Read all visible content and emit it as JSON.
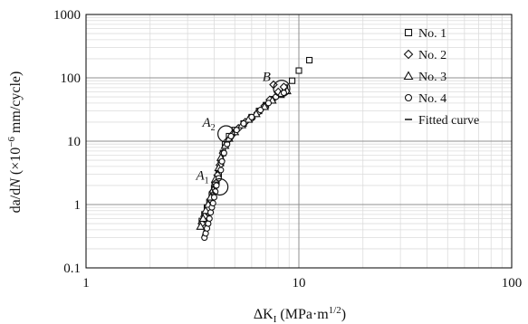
{
  "chart_data": {
    "type": "scatter",
    "x_scale": "log",
    "y_scale": "log",
    "xlim": [
      1,
      100
    ],
    "ylim": [
      0.1,
      1000
    ],
    "x_ticks": [
      "1",
      "10",
      "100"
    ],
    "y_ticks": [
      "0.1",
      "1",
      "10",
      "100",
      "1000"
    ],
    "grid": true,
    "legend_position": "top-right",
    "xlabel": {
      "prefix": "ΔK",
      "sub": "I",
      "mid": " (MPa·m",
      "sup": "1/2",
      "suffix": ")"
    },
    "ylabel": {
      "a": "da",
      "s1": "/d",
      "n": "N",
      "mid": " (×10",
      "sup": "−6",
      "suffix": " mm/cycle)"
    },
    "annotations": [
      {
        "main": "A",
        "sub": "1",
        "x": 4.25,
        "y": 1.9
      },
      {
        "main": "A",
        "sub": "2",
        "x": 4.55,
        "y": 13
      },
      {
        "main": "B",
        "sub": "",
        "x": 8.3,
        "y": 68
      }
    ],
    "series": [
      {
        "name": "No. 1",
        "marker": "square",
        "points": [
          [
            3.5,
            0.55
          ],
          [
            3.6,
            0.7
          ],
          [
            3.7,
            0.9
          ],
          [
            3.8,
            1.1
          ],
          [
            3.9,
            1.4
          ],
          [
            4.0,
            1.8
          ],
          [
            4.1,
            2.3
          ],
          [
            4.2,
            3.0
          ],
          [
            4.3,
            4.5
          ],
          [
            4.4,
            6.5
          ],
          [
            4.5,
            9
          ],
          [
            4.7,
            12
          ],
          [
            5.0,
            15
          ],
          [
            5.5,
            19
          ],
          [
            6.0,
            24
          ],
          [
            6.5,
            30
          ],
          [
            7.0,
            37
          ],
          [
            7.5,
            46
          ],
          [
            8.0,
            55
          ],
          [
            8.6,
            70
          ],
          [
            9.3,
            90
          ],
          [
            10.0,
            130
          ],
          [
            11.2,
            190
          ]
        ]
      },
      {
        "name": "No. 2",
        "marker": "diamond",
        "points": [
          [
            3.5,
            0.5
          ],
          [
            3.6,
            0.65
          ],
          [
            3.75,
            0.85
          ],
          [
            3.85,
            1.2
          ],
          [
            3.95,
            1.6
          ],
          [
            4.05,
            2.2
          ],
          [
            4.15,
            2.9
          ],
          [
            4.25,
            4.2
          ],
          [
            4.4,
            6.5
          ],
          [
            4.6,
            10
          ],
          [
            4.9,
            13
          ],
          [
            5.2,
            16
          ],
          [
            5.6,
            20
          ],
          [
            6.0,
            23
          ],
          [
            6.4,
            28
          ],
          [
            6.9,
            36
          ],
          [
            7.3,
            45
          ],
          [
            7.6,
            78
          ],
          [
            8.0,
            60
          ],
          [
            8.5,
            72
          ]
        ]
      },
      {
        "name": "No. 3",
        "marker": "triangle",
        "points": [
          [
            3.45,
            0.45
          ],
          [
            3.55,
            0.6
          ],
          [
            3.65,
            0.8
          ],
          [
            3.75,
            1.0
          ],
          [
            3.85,
            1.3
          ],
          [
            3.95,
            1.7
          ],
          [
            4.05,
            2.5
          ],
          [
            4.2,
            3.8
          ],
          [
            4.3,
            5.5
          ],
          [
            4.5,
            8.5
          ],
          [
            4.7,
            11
          ],
          [
            5.0,
            14
          ],
          [
            5.4,
            18
          ],
          [
            5.8,
            22
          ],
          [
            6.3,
            27
          ],
          [
            6.9,
            35
          ],
          [
            7.5,
            44
          ],
          [
            8.2,
            54
          ],
          [
            8.8,
            62
          ]
        ]
      },
      {
        "name": "No. 4",
        "marker": "circle",
        "points": [
          [
            3.6,
            0.3
          ],
          [
            3.65,
            0.35
          ],
          [
            3.7,
            0.42
          ],
          [
            3.75,
            0.5
          ],
          [
            3.8,
            0.6
          ],
          [
            3.85,
            0.75
          ],
          [
            3.9,
            0.9
          ],
          [
            3.95,
            1.05
          ],
          [
            4.0,
            1.3
          ],
          [
            4.05,
            1.6
          ],
          [
            4.1,
            2.0
          ],
          [
            4.2,
            2.6
          ],
          [
            4.3,
            3.5
          ],
          [
            4.35,
            4.8
          ],
          [
            4.45,
            6.5
          ],
          [
            4.6,
            9
          ],
          [
            4.8,
            12
          ],
          [
            5.1,
            15
          ],
          [
            5.5,
            19
          ],
          [
            6.0,
            24
          ],
          [
            6.6,
            31
          ],
          [
            7.2,
            40
          ],
          [
            7.8,
            50
          ],
          [
            8.5,
            58
          ]
        ]
      }
    ],
    "fitted_curve": {
      "name": "Fitted curve",
      "points": [
        [
          3.5,
          0.3
        ],
        [
          3.8,
          0.75
        ],
        [
          4.1,
          2.0
        ],
        [
          4.35,
          4.5
        ],
        [
          4.6,
          10
        ],
        [
          5.0,
          14
        ],
        [
          5.6,
          19
        ],
        [
          6.3,
          25
        ],
        [
          7.1,
          35
        ],
        [
          8.0,
          48
        ],
        [
          8.8,
          60
        ]
      ]
    }
  }
}
